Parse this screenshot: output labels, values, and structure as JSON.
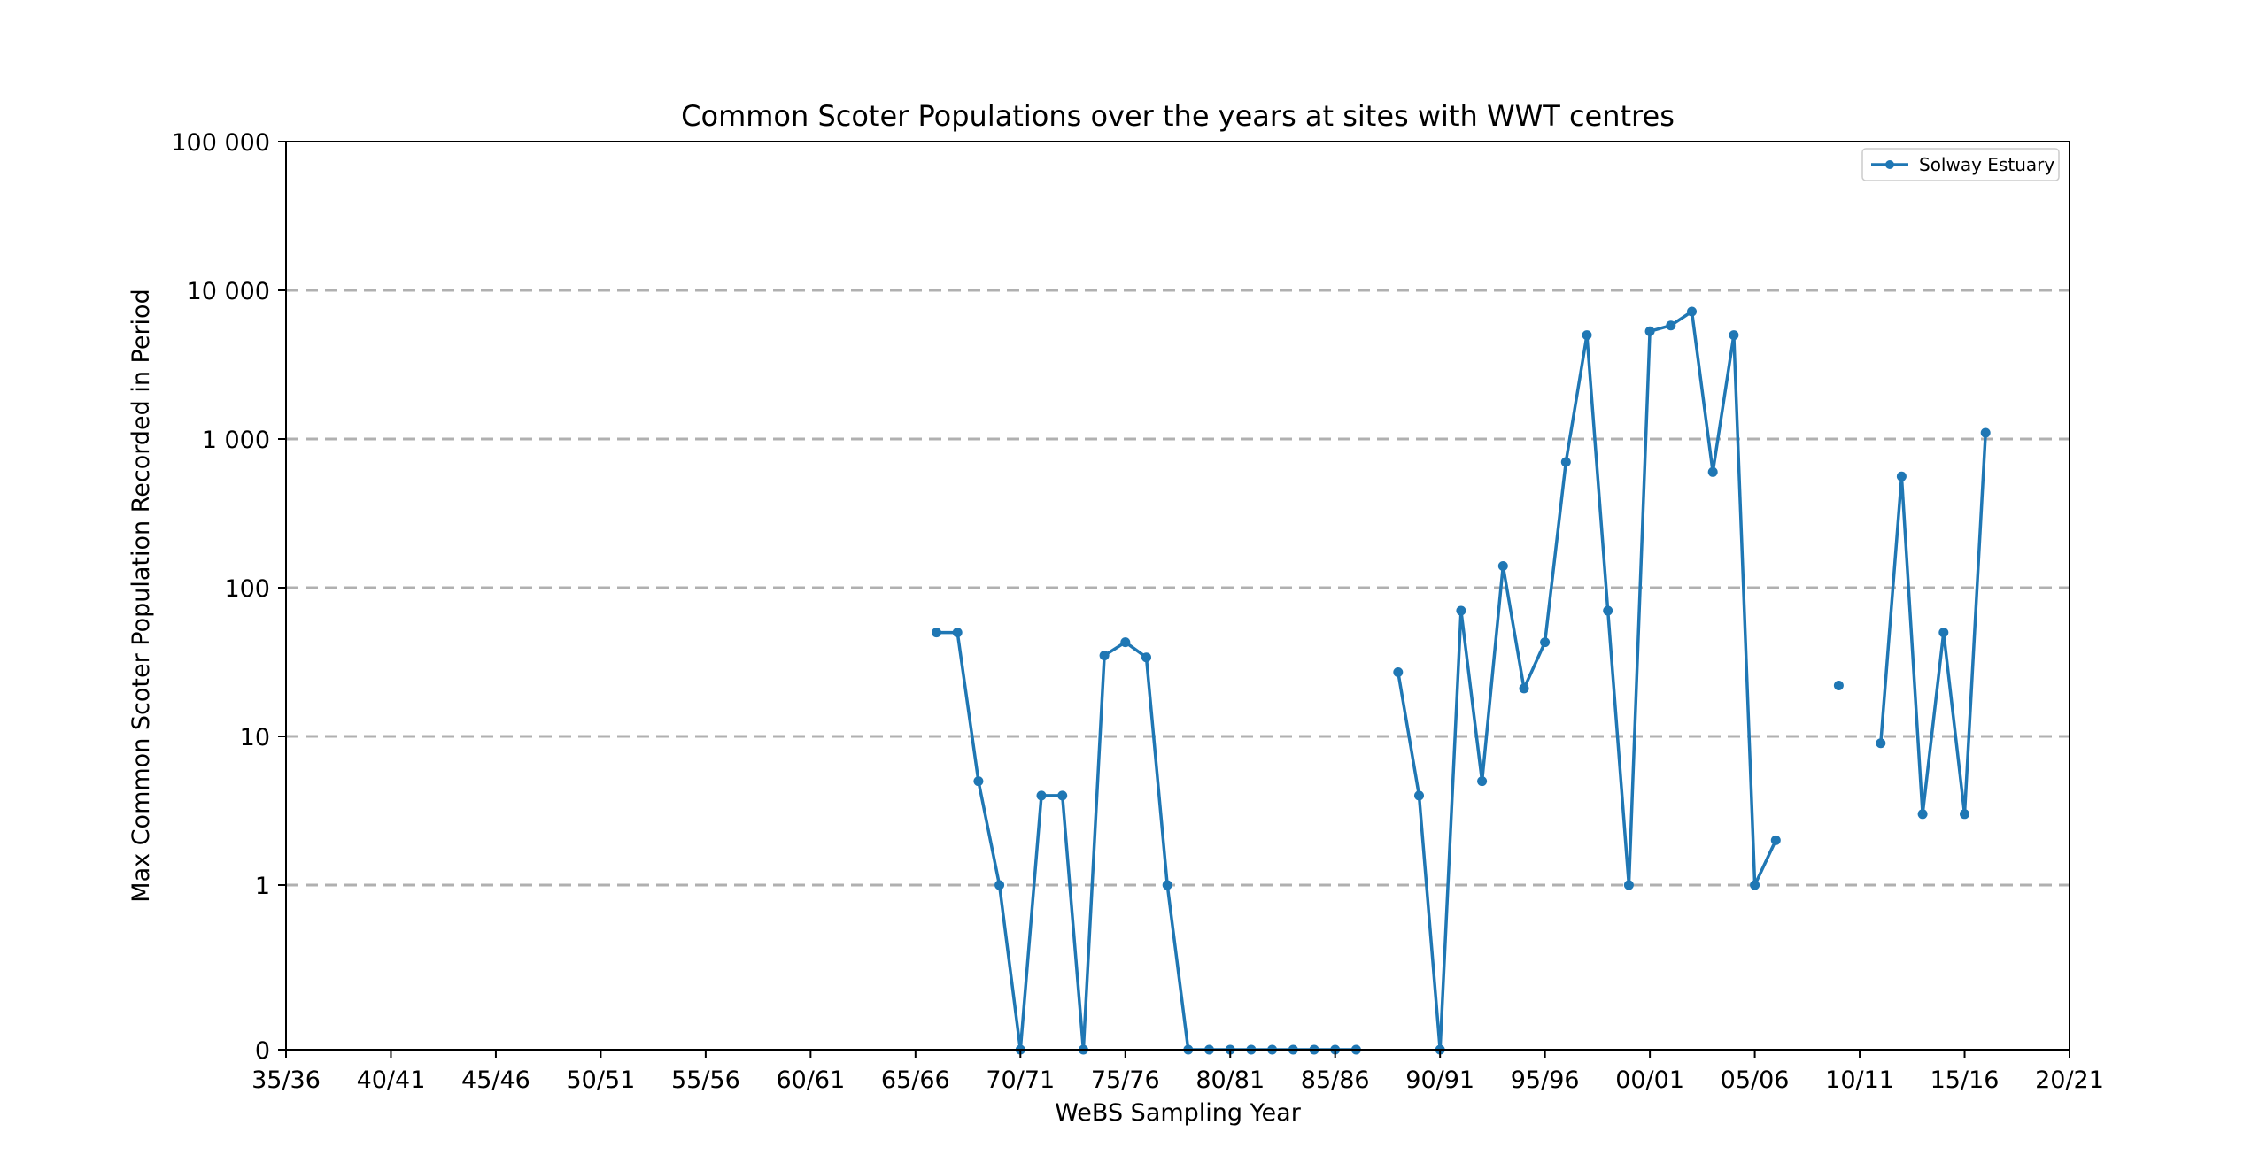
{
  "chart_data": {
    "type": "line",
    "title": "Common Scoter Populations over the years at sites with WWT centres",
    "xlabel": "WeBS Sampling Year",
    "ylabel": "Max Common Scoter Population Recorded in Period",
    "x_tick_labels": [
      "35/36",
      "40/41",
      "45/46",
      "50/51",
      "55/56",
      "60/61",
      "65/66",
      "70/71",
      "75/76",
      "80/81",
      "85/86",
      "90/91",
      "95/96",
      "00/01",
      "05/06",
      "10/11",
      "15/16",
      "20/21"
    ],
    "x_tick_years": [
      1935,
      1940,
      1945,
      1950,
      1955,
      1960,
      1965,
      1970,
      1975,
      1980,
      1985,
      1990,
      1995,
      2000,
      2005,
      2010,
      2015,
      2020
    ],
    "xlim": [
      1935,
      2020
    ],
    "y_scale": "symlog",
    "y_tick_labels": [
      "0",
      "1",
      "10",
      "100",
      "1 000",
      "10 000",
      "100 000"
    ],
    "y_tick_values": [
      0,
      1,
      10,
      100,
      1000,
      10000,
      100000
    ],
    "ylim": [
      0,
      100000
    ],
    "grid": "horizontal dashed",
    "legend_position": "top-right",
    "colors": {
      "series": "#1f77b4",
      "grid": "#b0b0b0",
      "axes": "#000000"
    },
    "series": [
      {
        "name": "Solway Estuary",
        "points": [
          [
            1966,
            50
          ],
          [
            1967,
            50
          ],
          [
            1968,
            5
          ],
          [
            1969,
            1
          ],
          [
            1970,
            0
          ],
          [
            1971,
            4
          ],
          [
            1972,
            4
          ],
          [
            1973,
            0
          ],
          [
            1974,
            35
          ],
          [
            1975,
            43
          ],
          [
            1976,
            34
          ],
          [
            1977,
            1
          ],
          [
            1978,
            0
          ],
          [
            1979,
            0
          ],
          [
            1980,
            0
          ],
          [
            1981,
            0
          ],
          [
            1982,
            0
          ],
          [
            1983,
            0
          ],
          [
            1984,
            0
          ],
          [
            1985,
            0
          ],
          [
            1986,
            0
          ],
          null,
          [
            1988,
            27
          ],
          [
            1989,
            4
          ],
          [
            1990,
            0
          ],
          [
            1991,
            70
          ],
          [
            1992,
            5
          ],
          [
            1993,
            140
          ],
          [
            1994,
            21
          ],
          [
            1995,
            43
          ],
          [
            1996,
            700
          ],
          [
            1997,
            5000
          ],
          [
            1998,
            70
          ],
          [
            1999,
            1
          ],
          [
            2000,
            5300
          ],
          [
            2001,
            5800
          ],
          [
            2002,
            7200
          ],
          [
            2003,
            600
          ],
          [
            2004,
            5000
          ],
          [
            2005,
            1
          ],
          [
            2006,
            2
          ],
          null,
          [
            2009,
            22
          ],
          null,
          [
            2011,
            9
          ],
          [
            2012,
            560
          ],
          [
            2013,
            3
          ],
          [
            2014,
            50
          ],
          [
            2015,
            3
          ],
          [
            2016,
            1100
          ]
        ]
      }
    ]
  }
}
